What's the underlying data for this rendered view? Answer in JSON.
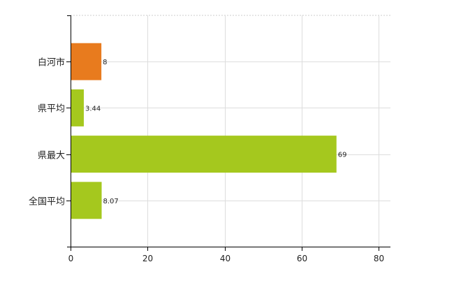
{
  "chart_data": {
    "type": "bar",
    "orientation": "horizontal",
    "categories": [
      "白河市",
      "県平均",
      "県最大",
      "全国平均"
    ],
    "values": [
      8,
      3.44,
      69,
      8.07
    ],
    "data_labels": [
      "8",
      "3.44",
      "69",
      "8.07"
    ],
    "bar_colors": [
      "#e87b1e",
      "#a5c81e",
      "#a5c81e",
      "#a5c81e"
    ],
    "xlim": [
      0,
      83
    ],
    "xticks": [
      0,
      20,
      40,
      60,
      80
    ],
    "xtick_labels": [
      "0",
      "20",
      "40",
      "60",
      "80"
    ],
    "grid": true,
    "legend": "none"
  }
}
